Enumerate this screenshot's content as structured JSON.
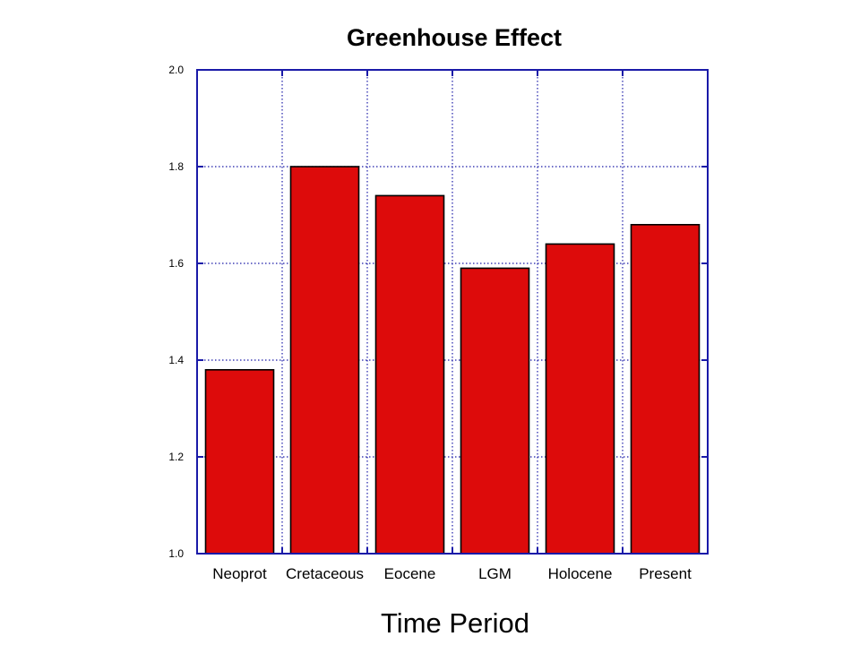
{
  "chart_data": {
    "type": "bar",
    "title": "Greenhouse Effect",
    "xlabel": "Time Period",
    "ylabel": "",
    "categories": [
      "Neoprot",
      "Cretaceous",
      "Eocene",
      "LGM",
      "Holocene",
      "Present"
    ],
    "values": [
      1.38,
      1.8,
      1.74,
      1.59,
      1.64,
      1.68
    ],
    "ylim": [
      1.0,
      2.0
    ],
    "yticks": [
      "1.0",
      "1.2",
      "1.4",
      "1.6",
      "1.8",
      "2.0"
    ],
    "grid": true,
    "bar_color": "#dd0b0b",
    "axis_color": "#1a1aa8"
  }
}
